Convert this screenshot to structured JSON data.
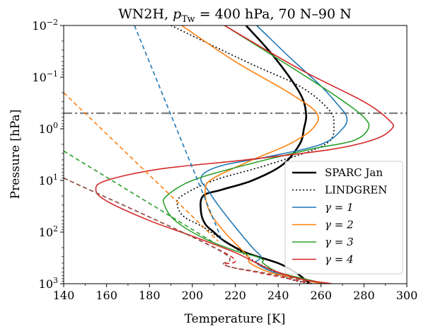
{
  "chart_data": {
    "type": "line",
    "title": "WN2H, p_Tw = 400 hPa, 70 N–90 N",
    "title_parts": {
      "prefix": "WN2H, ",
      "p": "p",
      "sub": "Tw",
      "suffix": " = 400 hPa, 70 N–90 N"
    },
    "xlabel": "Temperature [K]",
    "ylabel": "Pressure [hPa]",
    "xlim": [
      140,
      300
    ],
    "ylim": [
      1000,
      0.01
    ],
    "yscale": "log",
    "y_inverted": true,
    "xticks": [
      140,
      160,
      180,
      200,
      220,
      240,
      260,
      280,
      300
    ],
    "xtick_labels": [
      "140",
      "160",
      "180",
      "200",
      "220",
      "240",
      "260",
      "280",
      "300"
    ],
    "yticks": [
      0.01,
      0.1,
      1,
      10,
      100,
      1000
    ],
    "ytick_labels": [
      {
        "base": "10",
        "exp": "−2"
      },
      {
        "base": "10",
        "exp": "−1"
      },
      {
        "base": "10",
        "exp": "0"
      },
      {
        "base": "10",
        "exp": "1"
      },
      {
        "base": "10",
        "exp": "2"
      },
      {
        "base": "10",
        "exp": "3"
      }
    ],
    "grid": false,
    "legend_position": "lower-right",
    "reference_line": {
      "y": 0.5,
      "style": "dash-dot",
      "color": "#7f7f7f"
    },
    "series": [
      {
        "name": "SPARC Jan",
        "color": "#000000",
        "style": "solid",
        "width": 2.6,
        "points": [
          [
            225,
            0.01
          ],
          [
            238,
            0.04
          ],
          [
            250,
            0.2
          ],
          [
            253,
            0.5
          ],
          [
            252,
            1
          ],
          [
            250,
            2
          ],
          [
            242,
            5
          ],
          [
            228,
            10
          ],
          [
            214,
            15
          ],
          [
            205,
            20
          ],
          [
            204,
            40
          ],
          [
            206,
            70
          ],
          [
            210,
            100
          ],
          [
            215,
            150
          ],
          [
            225,
            250
          ],
          [
            240,
            400
          ],
          [
            248,
            600
          ],
          [
            252,
            800
          ],
          [
            255,
            1000
          ]
        ]
      },
      {
        "name": "LINDGREN",
        "color": "#000000",
        "style": "dotted",
        "width": 1.6,
        "points": [
          [
            190,
            0.01
          ],
          [
            225,
            0.05
          ],
          [
            250,
            0.15
          ],
          [
            263,
            0.4
          ],
          [
            266,
            0.8
          ],
          [
            262,
            2
          ],
          [
            235,
            5
          ],
          [
            210,
            10
          ],
          [
            195,
            20
          ],
          [
            193,
            30
          ],
          [
            196,
            50
          ],
          [
            205,
            80
          ],
          [
            215,
            150
          ],
          [
            225,
            280
          ],
          [
            228,
            350
          ],
          [
            235,
            500
          ],
          [
            245,
            800
          ],
          [
            255,
            1000
          ]
        ]
      },
      {
        "name": "γ = 1",
        "color": "#1f77b4",
        "style": "solid",
        "width": 1.6,
        "points": [
          [
            230,
            0.01
          ],
          [
            245,
            0.04
          ],
          [
            260,
            0.15
          ],
          [
            268,
            0.35
          ],
          [
            272,
            0.6
          ],
          [
            270,
            1
          ],
          [
            260,
            2
          ],
          [
            235,
            3.5
          ],
          [
            215,
            5
          ],
          [
            206,
            7
          ],
          [
            204,
            10
          ],
          [
            207,
            15
          ],
          [
            212,
            30
          ],
          [
            220,
            80
          ],
          [
            228,
            200
          ],
          [
            232,
            300
          ],
          [
            230,
            400
          ],
          [
            238,
            600
          ],
          [
            250,
            800
          ],
          [
            260,
            1000
          ]
        ]
      },
      {
        "name": "γ = 2",
        "color": "#ff7f0e",
        "style": "solid",
        "width": 1.6,
        "points": [
          [
            195,
            0.01
          ],
          [
            220,
            0.05
          ],
          [
            245,
            0.2
          ],
          [
            258,
            0.5
          ],
          [
            256,
            1
          ],
          [
            245,
            2
          ],
          [
            228,
            4
          ],
          [
            210,
            9
          ],
          [
            206,
            15
          ],
          [
            208,
            40
          ],
          [
            215,
            100
          ],
          [
            222,
            200
          ],
          [
            226,
            300
          ],
          [
            227,
            400
          ],
          [
            236,
            600
          ],
          [
            250,
            800
          ],
          [
            260,
            1000
          ]
        ]
      },
      {
        "name": "γ = 3",
        "color": "#2ca02c",
        "style": "solid",
        "width": 1.6,
        "points": [
          [
            215,
            0.01
          ],
          [
            245,
            0.06
          ],
          [
            268,
            0.25
          ],
          [
            280,
            0.6
          ],
          [
            282,
            1
          ],
          [
            275,
            1.7
          ],
          [
            255,
            2.5
          ],
          [
            225,
            5
          ],
          [
            200,
            10
          ],
          [
            188,
            20
          ],
          [
            187,
            30
          ],
          [
            192,
            60
          ],
          [
            205,
            130
          ],
          [
            220,
            230
          ],
          [
            230,
            300
          ],
          [
            233,
            350
          ],
          [
            233,
            400
          ],
          [
            240,
            600
          ],
          [
            252,
            800
          ],
          [
            262,
            1000
          ]
        ]
      },
      {
        "name": "γ = 4",
        "color": "#d62728",
        "style": "solid",
        "width": 1.6,
        "points": [
          [
            215,
            0.01
          ],
          [
            250,
            0.07
          ],
          [
            280,
            0.3
          ],
          [
            292,
            0.7
          ],
          [
            293,
            1
          ],
          [
            285,
            1.6
          ],
          [
            265,
            2.5
          ],
          [
            225,
            4
          ],
          [
            185,
            6
          ],
          [
            160,
            10
          ],
          [
            155,
            15
          ],
          [
            160,
            25
          ],
          [
            180,
            60
          ],
          [
            200,
            120
          ],
          [
            220,
            250
          ],
          [
            235,
            500
          ],
          [
            250,
            800
          ],
          [
            265,
            1000
          ]
        ]
      },
      {
        "name": "",
        "color": "#1f77b4",
        "style": "dashed",
        "width": 1.6,
        "points": [
          [
            173,
            0.01
          ],
          [
            214,
            150
          ]
        ]
      },
      {
        "name": "",
        "color": "#ff7f0e",
        "style": "dashed",
        "width": 1.6,
        "points": [
          [
            140,
            0.2
          ],
          [
            212,
            150
          ]
        ]
      },
      {
        "name": "",
        "color": "#2ca02c",
        "style": "dashed",
        "width": 1.6,
        "points": [
          [
            140,
            2.7
          ],
          [
            210,
            160
          ]
        ]
      },
      {
        "name": "",
        "color": "#d62728",
        "style": "dashed",
        "width": 1.6,
        "points": [
          [
            140,
            9
          ],
          [
            215,
            250
          ],
          [
            215,
            430
          ],
          [
            230,
            600
          ],
          [
            245,
            800
          ],
          [
            255,
            1000
          ]
        ]
      },
      {
        "name": "",
        "color": "#8c564b",
        "style": "dashed",
        "width": 1.6,
        "points": [
          [
            140,
            9
          ],
          [
            212,
            220
          ],
          [
            215,
            430
          ],
          [
            232,
            600
          ],
          [
            248,
            800
          ],
          [
            256,
            1000
          ]
        ]
      }
    ]
  }
}
